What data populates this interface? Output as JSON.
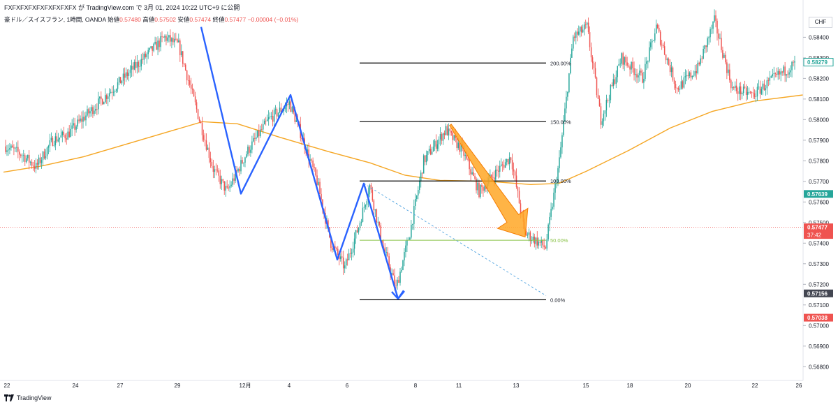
{
  "header": {
    "publish_line": "FXFXFXFXFXFXFXFXFX が TradingView.com で 3月 01, 2024 10:22 UTC+9 に公開"
  },
  "legend": {
    "symbol": "豪ドル／スイスフラン, 1時間, OANDA",
    "open_label": "始値",
    "open": "0.57480",
    "high_label": "高値",
    "high": "0.57502",
    "low_label": "安値",
    "low": "0.57474",
    "close_label": "終値",
    "close": "0.57477",
    "change": "−0.00004 (−0.01%)"
  },
  "currency_label": "CHF",
  "footer": {
    "brand": "TradingView"
  },
  "colors": {
    "up": "#26a69a",
    "down": "#ef5350",
    "ma": "#f5a623",
    "wave": "#2962ff",
    "fib": "#000000",
    "fib50": "#8bc34a",
    "arrow": "#ffa726",
    "trend": "#4fa3e0"
  },
  "chart_data": {
    "type": "candlestick",
    "y_range": [
      0.5675,
      0.5852
    ],
    "y_ticks": [
      "0.58400",
      "0.58300",
      "0.58200",
      "0.58100",
      "0.58000",
      "0.57900",
      "0.57800",
      "0.57700",
      "0.57600",
      "0.57500",
      "0.57400",
      "0.57300",
      "0.57200",
      "0.57100",
      "0.57000",
      "0.56900",
      "0.56800"
    ],
    "x_labels": [
      "22",
      "24",
      "27",
      "29",
      "12月",
      "4",
      "6",
      "8",
      "11",
      "13",
      "15",
      "18",
      "20",
      "22",
      "26"
    ],
    "price_badges": [
      {
        "value": "0.58279",
        "color": "#26a69a",
        "style": "outline"
      },
      {
        "value": "0.57639",
        "color": "#26a69a",
        "style": "fill"
      },
      {
        "value": "0.57477",
        "sub": "37:42",
        "color": "#ef5350",
        "style": "fill"
      },
      {
        "value": "0.57156",
        "color": "#434651",
        "style": "fill"
      },
      {
        "value": "0.57038",
        "color": "#ef5350",
        "style": "fill"
      }
    ],
    "fib_levels": [
      {
        "label": "200.00%",
        "price": 0.58275
      },
      {
        "label": "150.00%",
        "price": 0.5799
      },
      {
        "label": "100.00%",
        "price": 0.57702
      },
      {
        "label": "50.00%",
        "price": 0.57414
      },
      {
        "label": "0.00%",
        "price": 0.57125
      }
    ],
    "anchors": [
      {
        "i": 0,
        "p": 0.5787
      },
      {
        "i": 12,
        "p": 0.5783
      },
      {
        "i": 22,
        "p": 0.5777
      },
      {
        "i": 34,
        "p": 0.579
      },
      {
        "i": 45,
        "p": 0.5793
      },
      {
        "i": 55,
        "p": 0.58
      },
      {
        "i": 70,
        "p": 0.581
      },
      {
        "i": 85,
        "p": 0.582
      },
      {
        "i": 100,
        "p": 0.583
      },
      {
        "i": 115,
        "p": 0.584
      },
      {
        "i": 125,
        "p": 0.5836
      },
      {
        "i": 140,
        "p": 0.58
      },
      {
        "i": 150,
        "p": 0.5776
      },
      {
        "i": 160,
        "p": 0.5765
      },
      {
        "i": 175,
        "p": 0.5785
      },
      {
        "i": 190,
        "p": 0.58
      },
      {
        "i": 205,
        "p": 0.5808
      },
      {
        "i": 215,
        "p": 0.579
      },
      {
        "i": 225,
        "p": 0.577
      },
      {
        "i": 235,
        "p": 0.574
      },
      {
        "i": 245,
        "p": 0.5728
      },
      {
        "i": 255,
        "p": 0.5748
      },
      {
        "i": 263,
        "p": 0.5768
      },
      {
        "i": 272,
        "p": 0.574
      },
      {
        "i": 282,
        "p": 0.5718
      },
      {
        "i": 292,
        "p": 0.5745
      },
      {
        "i": 302,
        "p": 0.578
      },
      {
        "i": 318,
        "p": 0.5795
      },
      {
        "i": 330,
        "p": 0.5785
      },
      {
        "i": 342,
        "p": 0.5765
      },
      {
        "i": 355,
        "p": 0.5775
      },
      {
        "i": 365,
        "p": 0.5782
      },
      {
        "i": 375,
        "p": 0.5745
      },
      {
        "i": 390,
        "p": 0.5738
      },
      {
        "i": 400,
        "p": 0.578
      },
      {
        "i": 410,
        "p": 0.584
      },
      {
        "i": 420,
        "p": 0.5845
      },
      {
        "i": 430,
        "p": 0.58
      },
      {
        "i": 445,
        "p": 0.583
      },
      {
        "i": 460,
        "p": 0.582
      },
      {
        "i": 470,
        "p": 0.5845
      },
      {
        "i": 485,
        "p": 0.5815
      },
      {
        "i": 500,
        "p": 0.5825
      },
      {
        "i": 512,
        "p": 0.5848
      },
      {
        "i": 525,
        "p": 0.5815
      },
      {
        "i": 540,
        "p": 0.5812
      },
      {
        "i": 555,
        "p": 0.582
      },
      {
        "i": 570,
        "p": 0.5827
      }
    ],
    "ma_anchors": [
      {
        "x": 5,
        "p": 0.57745
      },
      {
        "x": 60,
        "p": 0.57775
      },
      {
        "x": 120,
        "p": 0.5782
      },
      {
        "x": 190,
        "p": 0.5789
      },
      {
        "x": 250,
        "p": 0.5795
      },
      {
        "x": 290,
        "p": 0.5799
      },
      {
        "x": 340,
        "p": 0.5798
      },
      {
        "x": 400,
        "p": 0.57915
      },
      {
        "x": 470,
        "p": 0.57845
      },
      {
        "x": 530,
        "p": 0.5779
      },
      {
        "x": 580,
        "p": 0.5773
      },
      {
        "x": 630,
        "p": 0.57705
      },
      {
        "x": 700,
        "p": 0.577
      },
      {
        "x": 760,
        "p": 0.57685
      },
      {
        "x": 800,
        "p": 0.5769
      },
      {
        "x": 840,
        "p": 0.5775
      },
      {
        "x": 900,
        "p": 0.5785
      },
      {
        "x": 960,
        "p": 0.5796
      },
      {
        "x": 1020,
        "p": 0.5804
      },
      {
        "x": 1080,
        "p": 0.5809
      },
      {
        "x": 1150,
        "p": 0.5812
      }
    ],
    "elliott_wave": [
      {
        "x": 288,
        "p": 0.5845
      },
      {
        "x": 345,
        "p": 0.5764
      },
      {
        "x": 416,
        "p": 0.5812
      },
      {
        "x": 483,
        "p": 0.5732
      },
      {
        "x": 521,
        "p": 0.5769
      },
      {
        "x": 570,
        "p": 0.5713
      },
      {
        "x": 578,
        "p": 0.5717
      }
    ],
    "trendline": [
      {
        "x": 521,
        "p": 0.5769
      },
      {
        "x": 782,
        "p": 0.57145
      }
    ],
    "arrow": {
      "from": {
        "x": 645,
        "p": 0.57975
      },
      "to": {
        "x": 752,
        "p": 0.5743
      }
    },
    "last_price_line": 0.57477
  }
}
